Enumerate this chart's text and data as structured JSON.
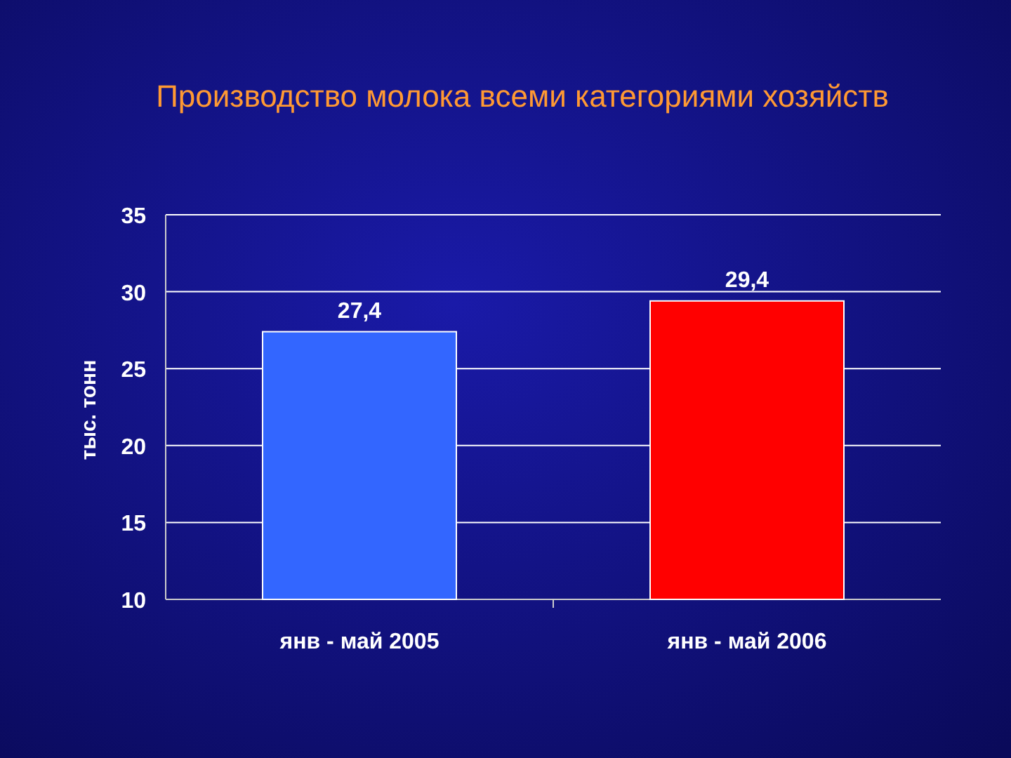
{
  "chart_data": {
    "type": "bar",
    "title": "Производство молока всеми категориями хозяйств",
    "ylabel": "тыс. тонн",
    "categories": [
      "янв - май 2005",
      "янв - май 2006"
    ],
    "values": [
      27.4,
      29.4
    ],
    "colors": [
      "#3366ff",
      "#ff0000"
    ],
    "value_labels": [
      "27,4",
      "29,4"
    ],
    "ylim": [
      10,
      35
    ],
    "yticks": [
      10,
      15,
      20,
      25,
      30,
      35
    ],
    "grid": "y"
  }
}
